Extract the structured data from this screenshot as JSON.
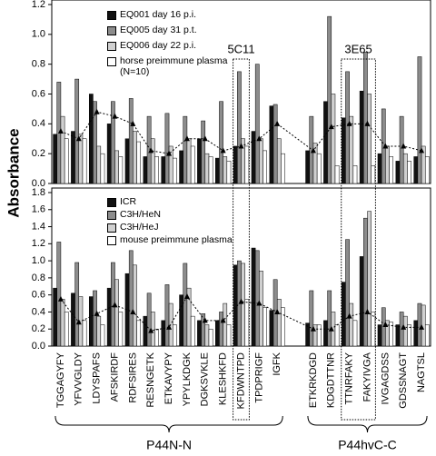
{
  "chart_data": [
    {
      "type": "bar",
      "ylabel": "Absorbance",
      "annotations": [
        "5C11",
        "3E65"
      ],
      "ylim": [
        0,
        1.2
      ],
      "yticks": [
        {
          "value": 0,
          "label": "0.0"
        },
        0.2,
        0.4,
        0.6,
        0.8,
        {
          "value": 1,
          "label": "1.0"
        },
        1.2
      ],
      "series": [
        {
          "name": "EQ001 day 16 p.i.",
          "color": "#111111",
          "values": [
            0.33,
            0.35,
            0.6,
            0.4,
            0.3,
            0.18,
            0.18,
            0.22,
            0.3,
            0.17,
            0.25,
            0.35,
            0.52,
            0.22,
            0.55,
            0.44,
            0.62,
            0.2,
            0.15,
            0.18
          ]
        },
        {
          "name": "EQ005 day 31 p.t.",
          "color": "#8c8c8c",
          "values": [
            0.68,
            0.7,
            0.55,
            0.55,
            0.57,
            0.45,
            0.47,
            0.45,
            0.42,
            0.55,
            0.75,
            0.8,
            0.53,
            0.45,
            1.12,
            0.75,
            0.88,
            0.5,
            0.45,
            0.85
          ]
        },
        {
          "name": "EQ006 day 22 p.i.",
          "color": "#d0d0d0",
          "values": [
            0.45,
            0.33,
            0.25,
            0.22,
            0.35,
            0.3,
            0.25,
            0.3,
            0.2,
            0.18,
            0.3,
            0.3,
            0.3,
            0.27,
            0.6,
            0.45,
            0.6,
            0.25,
            0.2,
            0.25
          ]
        },
        {
          "name": "horse preimmune plasma\n(N=10)",
          "color": "#ffffff",
          "values": [
            0.3,
            0.3,
            0.2,
            0.18,
            0.28,
            0.18,
            0.17,
            0.25,
            0.18,
            0.15,
            0.25,
            0.22,
            0.2,
            0.2,
            0.12,
            0.12,
            0.12,
            0.18,
            0.15,
            0.18
          ]
        },
        {
          "color": "#000000",
          "style": "line",
          "values": [
            0.35,
            0.3,
            0.48,
            0.45,
            0.4,
            0.22,
            0.2,
            0.3,
            0.3,
            0.22,
            0.25,
            0.3,
            0.4,
            0.22,
            0.38,
            0.4,
            0.4,
            0.25,
            0.25,
            0.22
          ]
        }
      ]
    },
    {
      "type": "bar",
      "ylim": [
        0,
        1.8
      ],
      "yticks": [
        {
          "value": 0,
          "label": "0.0"
        },
        0.2,
        0.4,
        0.6,
        0.8,
        {
          "value": 1,
          "label": "1.0"
        },
        1.2,
        1.4,
        1.6,
        1.8
      ],
      "groups": [
        {
          "name": "P44N-N",
          "categories": [
            "TGGAGYFY",
            "YFVVGLDY",
            "LDYSPAFS",
            "AFSKIRDF",
            "RDFSIRES",
            "RESNGETK",
            "ETKAVYPY",
            "YPYLKDGK",
            "DGKSVKLE",
            "KLESHKFD",
            "KFDWNTPD",
            "TPDPRIGF",
            "IGFK"
          ]
        },
        {
          "name": "P44hvC-C",
          "categories": [
            "ETKRKDGD",
            "KDGDTTNR",
            "TTNRFAKY",
            "FAKYIVGA",
            "IVGAGDSS",
            "GDSSNAGT",
            "NAGTSL"
          ]
        }
      ],
      "series": [
        {
          "name": "ICR",
          "color": "#111111",
          "values": [
            0.68,
            0.62,
            0.58,
            0.68,
            0.85,
            0.35,
            0.3,
            0.6,
            0.3,
            0.3,
            0.95,
            1.15,
            0.42,
            0.27,
            0.3,
            0.75,
            1.05,
            0.25,
            0.25,
            0.3
          ]
        },
        {
          "name": "C3H/HeN",
          "color": "#8c8c8c",
          "values": [
            1.22,
            0.98,
            0.65,
            0.98,
            1.12,
            0.62,
            0.72,
            0.97,
            0.38,
            0.4,
            1.0,
            1.12,
            0.78,
            0.65,
            0.65,
            1.25,
            1.5,
            0.45,
            0.4,
            0.5
          ]
        },
        {
          "name": "C3H/HeJ",
          "color": "#d0d0d0",
          "values": [
            0.55,
            0.58,
            0.35,
            0.78,
            0.95,
            0.4,
            0.5,
            0.68,
            0.25,
            0.5,
            0.97,
            0.88,
            0.55,
            0.25,
            0.4,
            0.5,
            1.58,
            0.3,
            0.35,
            0.48
          ]
        },
        {
          "name": "mouse preimmune plasma",
          "color": "#ffffff",
          "values": [
            0.4,
            0.3,
            0.25,
            0.4,
            0.3,
            0.2,
            0.25,
            0.35,
            0.2,
            0.25,
            0.55,
            0.45,
            0.45,
            0.25,
            0.25,
            0.3,
            0.4,
            0.28,
            0.25,
            0.25
          ]
        },
        {
          "color": "#000000",
          "style": "line",
          "values": [
            0.55,
            0.28,
            0.38,
            0.48,
            0.4,
            0.18,
            0.22,
            0.58,
            0.3,
            0.3,
            0.52,
            0.5,
            0.4,
            0.2,
            0.2,
            0.35,
            0.4,
            0.25,
            0.22,
            0.22
          ]
        }
      ]
    }
  ]
}
